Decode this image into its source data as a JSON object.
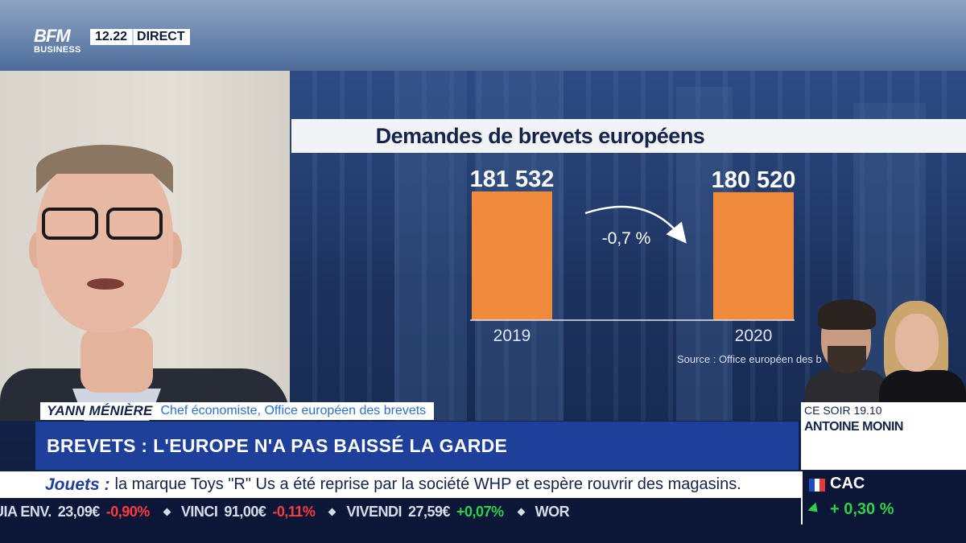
{
  "channel": {
    "logo_line1": "BFM",
    "logo_line2": "BUSINESS",
    "time": "12.22",
    "live_label": "DIRECT"
  },
  "chart_data": {
    "type": "bar",
    "title": "Demandes de brevets européens",
    "categories": [
      "2019",
      "2020"
    ],
    "values": [
      181532,
      180520
    ],
    "value_labels": [
      "181 532",
      "180 520"
    ],
    "change_label": "-0,7 %",
    "source": "Source : Office européen des b",
    "colors": {
      "bar": "#f08a3c"
    }
  },
  "guest": {
    "name": "YANN MÉNIÈRE",
    "role": "Chef économiste, Office européen des brevets"
  },
  "headline": "BREVETS : L'EUROPE N'A PAS BAISSÉ LA GARDE",
  "ticker": {
    "tag": "Jouets :",
    "text": "la marque Toys \"R\" Us a été reprise par la société WHP et espère rouvrir des magasins."
  },
  "programme": {
    "time": "CE SOIR 19.10",
    "name": "ANTOINE MONIN"
  },
  "markets": [
    {
      "name": "UIA ENV.",
      "value": "23,09€",
      "change": "-0,90%",
      "direction": "down"
    },
    {
      "name": "VINCI",
      "value": "91,00€",
      "change": "-0,11%",
      "direction": "down"
    },
    {
      "name": "VIVENDI",
      "value": "27,59€",
      "change": "+0,07%",
      "direction": "up"
    },
    {
      "name": "WOR",
      "value": "",
      "change": "",
      "direction": "up"
    }
  ],
  "index": {
    "name": "CAC",
    "change": "+ 0,30 %",
    "direction": "up"
  },
  "colors": {
    "headline_bg": "#1e3f9a",
    "market_bg": "#0c1737",
    "up": "#2ed14a",
    "down": "#ff3b3b"
  }
}
